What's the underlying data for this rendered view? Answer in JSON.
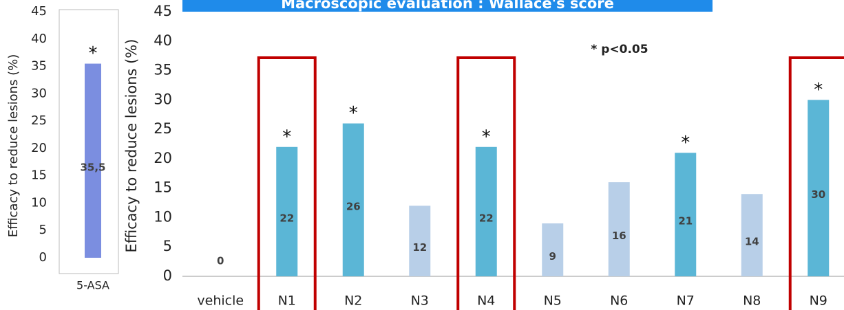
{
  "chart_data": [
    {
      "type": "bar",
      "y_label": "Efficacy to reduce lesions (%)",
      "categories": [
        "5-ASA"
      ],
      "values": [
        35.5
      ],
      "value_labels": [
        "35,5"
      ],
      "markers": [
        "*"
      ],
      "colors": [
        "#7b8ee0"
      ],
      "ylim": [
        0,
        45
      ],
      "yticks": [
        0,
        5,
        10,
        15,
        20,
        25,
        30,
        35,
        40,
        45
      ]
    },
    {
      "type": "bar",
      "title": "Macroscopic evaluation : Wallace's score",
      "y_label": "Efficacy to reduce lesions (%)",
      "annotation": "* p<0.05",
      "categories": [
        "vehicle",
        "N1",
        "N2",
        "N3",
        "N4",
        "N5",
        "N6",
        "N7",
        "N8",
        "N9"
      ],
      "values": [
        0,
        22,
        26,
        12,
        22,
        9,
        16,
        21,
        14,
        30
      ],
      "markers": [
        null,
        "*",
        "*",
        null,
        "*",
        null,
        null,
        "*",
        null,
        "*"
      ],
      "colors": [
        "#5bb6d6",
        "#5bb6d6",
        "#5bb6d6",
        "#b8cfe8",
        "#5bb6d6",
        "#b8cfe8",
        "#b8cfe8",
        "#5bb6d6",
        "#b8cfe8",
        "#5bb6d6"
      ],
      "highlighted": [
        false,
        true,
        false,
        false,
        true,
        false,
        false,
        false,
        false,
        true
      ],
      "highlight_color": "#c00000",
      "ylim": [
        0,
        45
      ],
      "yticks": [
        0,
        5,
        10,
        15,
        20,
        25,
        30,
        35,
        40,
        45
      ]
    }
  ]
}
